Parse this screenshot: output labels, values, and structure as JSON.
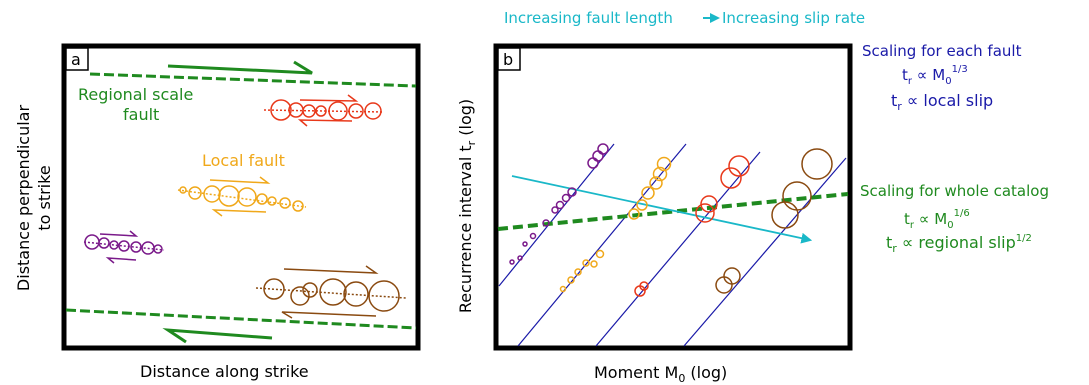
{
  "colors": {
    "frame": "#000000",
    "regional": "#1f8a1f",
    "orange_fault": "#f0a81a",
    "red_fault": "#e8381a",
    "purple_fault": "#7a1a8a",
    "brown_fault": "#8a4a10",
    "blue_lines": "#1a1aa8",
    "cyan_arrow": "#1ab8c8"
  },
  "top_annotation": {
    "left": "Increasing fault length",
    "right": "Increasing slip rate"
  },
  "panel_a": {
    "label": "a",
    "regional_fault_label_1": "Regional scale",
    "regional_fault_label_2": "fault",
    "local_fault_label": "Local fault",
    "xlabel": "Distance along strike",
    "ylabel_1": "Distance perpendicular",
    "ylabel_2": "to strike"
  },
  "panel_b": {
    "label": "b",
    "xlabel_main": "Moment M",
    "xlabel_sub": "0",
    "xlabel_tail": " (log)",
    "ylabel_main": "Recurrence interval t",
    "ylabel_sub": "r",
    "ylabel_tail": " (log)"
  },
  "right_text": {
    "each_fault": {
      "title": "Scaling for each fault",
      "eq1_base": "t",
      "eq1_sub": "r",
      "eq1_mid": " ∝ M",
      "eq1_sub2": "0",
      "eq1_sup": "1/3",
      "eq2_base": "t",
      "eq2_sub": "r",
      "eq2_tail": " ∝ local slip"
    },
    "whole_catalog": {
      "title": "Scaling for whole catalog",
      "eq1_base": "t",
      "eq1_sub": "r",
      "eq1_mid": " ∝ M",
      "eq1_sub2": "0",
      "eq1_sup": "1/6",
      "eq2_base": "t",
      "eq2_sub": "r",
      "eq2_tail": " ∝ regional slip",
      "eq2_sup": "1/2"
    }
  }
}
